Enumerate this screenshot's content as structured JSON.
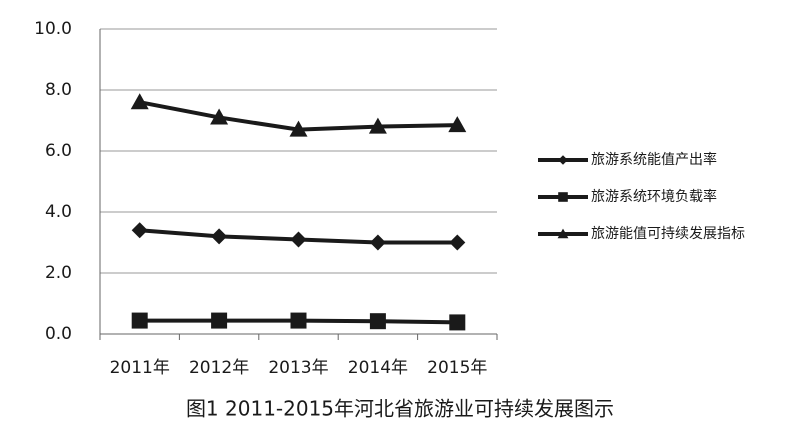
{
  "chart_data": {
    "type": "line",
    "title": "图1 2011-2015年河北省旅游业可持续发展图示",
    "categories": [
      "2011年",
      "2012年",
      "2013年",
      "2014年",
      "2015年"
    ],
    "series": [
      {
        "name": "旅游系统能值产出率",
        "color": "#1a1a1a",
        "marker": "diamond",
        "values": [
          3.4,
          3.2,
          3.1,
          3.0,
          3.0
        ]
      },
      {
        "name": "旅游系统环境负载率",
        "color": "#1a1a1a",
        "marker": "square",
        "values": [
          0.44,
          0.44,
          0.44,
          0.42,
          0.38
        ]
      },
      {
        "name": "旅游能值可持续发展指标",
        "color": "#1a1a1a",
        "marker": "triangle",
        "values": [
          7.6,
          7.1,
          6.7,
          6.8,
          6.85
        ]
      }
    ],
    "ylim": [
      0,
      10
    ],
    "yticks": [
      {
        "value": 0,
        "label": "0.0"
      },
      {
        "value": 2,
        "label": "2.0"
      },
      {
        "value": 4,
        "label": "4.0"
      },
      {
        "value": 6,
        "label": "6.0"
      },
      {
        "value": 8,
        "label": "8.0"
      },
      {
        "value": 10,
        "label": "10.0"
      }
    ],
    "grid": true,
    "legend": "right"
  }
}
